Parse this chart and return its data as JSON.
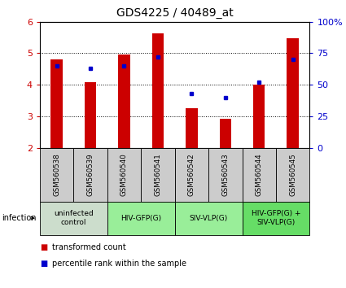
{
  "title": "GDS4225 / 40489_at",
  "samples": [
    "GSM560538",
    "GSM560539",
    "GSM560540",
    "GSM560541",
    "GSM560542",
    "GSM560543",
    "GSM560544",
    "GSM560545"
  ],
  "transformed_counts": [
    4.8,
    4.1,
    4.95,
    5.62,
    3.27,
    2.93,
    4.02,
    5.47
  ],
  "percentile_ranks": [
    65,
    63,
    65,
    72,
    43,
    40,
    52,
    70
  ],
  "ylim_left": [
    2,
    6
  ],
  "ylim_right": [
    0,
    100
  ],
  "yticks_left": [
    2,
    3,
    4,
    5,
    6
  ],
  "yticks_right": [
    0,
    25,
    50,
    75,
    100
  ],
  "ytick_labels_right": [
    "0",
    "25",
    "50",
    "75",
    "100%"
  ],
  "bar_color": "#cc0000",
  "dot_color": "#0000cc",
  "bar_bottom": 2,
  "groups": [
    {
      "label": "uninfected\ncontrol",
      "start": 0,
      "end": 2,
      "color": "#ccddcc"
    },
    {
      "label": "HIV-GFP(G)",
      "start": 2,
      "end": 4,
      "color": "#99ee99"
    },
    {
      "label": "SIV-VLP(G)",
      "start": 4,
      "end": 6,
      "color": "#99ee99"
    },
    {
      "label": "HIV-GFP(G) +\nSIV-VLP(G)",
      "start": 6,
      "end": 8,
      "color": "#66dd66"
    }
  ],
  "axis_label_color_left": "#cc0000",
  "axis_label_color_right": "#0000cc",
  "sample_box_color": "#cccccc",
  "bar_width": 0.35
}
